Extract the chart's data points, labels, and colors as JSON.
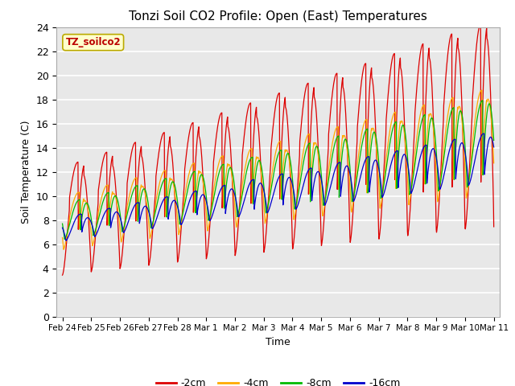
{
  "title": "Tonzi Soil CO2 Profile: Open (East) Temperatures",
  "xlabel": "Time",
  "ylabel": "Soil Temperature (C)",
  "ylim": [
    0,
    24
  ],
  "background_color": "#e8e8e8",
  "plot_bg_color": "#e8e8e8",
  "grid_color": "white",
  "legend_label": "TZ_soilco2",
  "legend_box_color": "#ffffcc",
  "legend_box_edge": "#bbaa00",
  "series_labels": [
    "-2cm",
    "-4cm",
    "-8cm",
    "-16cm"
  ],
  "series_colors": [
    "#dd0000",
    "#ffaa00",
    "#00bb00",
    "#0000cc"
  ],
  "xtick_labels": [
    "Feb 24",
    "Feb 25",
    "Feb 26",
    "Feb 27",
    "Feb 28",
    "Mar 1",
    "Mar 2",
    "Mar 3",
    "Mar 4",
    "Mar 5",
    "Mar 6",
    "Mar 7",
    "Mar 8",
    "Mar 9",
    "Mar 10",
    "Mar 11"
  ],
  "xtick_positions": [
    0,
    1,
    2,
    3,
    4,
    5,
    6,
    7,
    8,
    9,
    10,
    11,
    12,
    13,
    14,
    15
  ]
}
